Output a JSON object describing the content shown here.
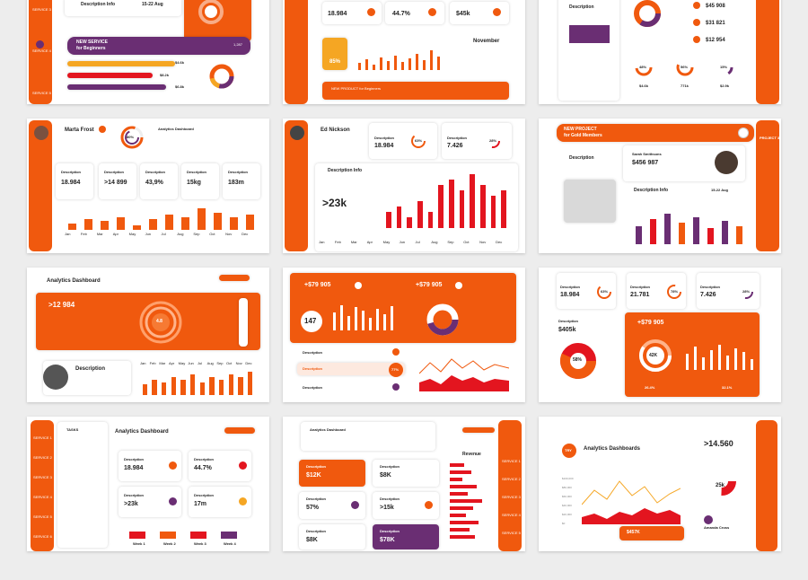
{
  "colors": {
    "orange": "#f0590e",
    "red": "#e3151f",
    "purple": "#6a2e73",
    "yellow": "#f5a623"
  },
  "s1": {
    "desc": "Description Info",
    "date": "15-22 Aug",
    "banner1": "NEW SERVICE",
    "banner2": "for Beginners",
    "v1": "$4.6k",
    "v2": "$6.8k",
    "v3": "$8.2k",
    "v4": "1,287",
    "rail": [
      "SERVICE 3",
      "SERVICE 4",
      "SERVICE 5"
    ]
  },
  "s2": {
    "v1": "18.984",
    "v2": "44.7%",
    "v3": "$45k",
    "pct": "85%",
    "month": "November",
    "banner": "NEW PRODUCT for Beginners"
  },
  "s3": {
    "desc": "Description",
    "v1": "$45 908",
    "v2": "$31 821",
    "v3": "$12 954",
    "p1": "48%",
    "p2": "56%",
    "p3": "15%",
    "m1": "$4.6k",
    "m2": "771k",
    "m3": "$2.9k"
  },
  "s4": {
    "name": "Marta Frost",
    "pct": "80%",
    "title": "Analytics Dashboard",
    "labels": [
      "Description",
      "Description",
      "Description",
      "Description",
      "Description"
    ],
    "values": [
      "18.984",
      ">14 899",
      "43,9%",
      "15kg",
      "183m"
    ],
    "months": [
      "Jan",
      "Feb",
      "Mar",
      "Apr",
      "May",
      "Jun",
      "Jul",
      "Aug",
      "Sep",
      "Oct",
      "Nov",
      "Dec"
    ],
    "bars": [
      3,
      5,
      4,
      6,
      2,
      5,
      7,
      6,
      10,
      8,
      6,
      7
    ]
  },
  "s5": {
    "name": "Ed Nickson",
    "d1": "Description",
    "v1": "18.984",
    "p1": "63%",
    "d2": "Description",
    "v2": "7.426",
    "p2": "28%",
    "info": "Description Info",
    "big": ">23k",
    "months": [
      "Jan",
      "Feb",
      "Mar",
      "Apr",
      "May",
      "Jun",
      "Jul",
      "Aug",
      "Sep",
      "Oct",
      "Nov",
      "Dec"
    ],
    "bars": [
      3,
      4,
      2,
      5,
      3,
      8,
      9,
      7,
      10,
      8,
      6,
      7
    ]
  },
  "s6": {
    "banner1": "NEW PROJECT",
    "banner2": "for Gold Members",
    "rail": "PROJECT 3",
    "desc": "Description",
    "person": "Sarah Smithsons",
    "value": "$456 987",
    "info": "Description Info",
    "date": "15-22 Aug"
  },
  "s7": {
    "title": "Analytics Dashboard",
    "big": ">12 984",
    "gauge": "4.8",
    "desc": "Description",
    "months": [
      "Jan",
      "Feb",
      "Mar",
      "Apr",
      "May",
      "Jun",
      "Jul",
      "Aug",
      "Sep",
      "Oct",
      "Nov",
      "Dec"
    ],
    "bars": [
      4,
      6,
      5,
      7,
      6,
      8,
      5,
      7,
      6,
      8,
      7,
      9
    ]
  },
  "s8": {
    "v1": "+$79 905",
    "v2": "+$79 905",
    "big": "147",
    "labels": [
      "Description",
      "Description",
      "Description"
    ],
    "pct": "77%"
  },
  "s9": {
    "d1": "Description",
    "v1": "18.984",
    "p1": "63%",
    "d2": "Description",
    "v2": "21.781",
    "p2": "78%",
    "d3": "Description",
    "v3": "7.426",
    "p3": "28%",
    "d4": "Description",
    "v4": "$405k",
    "p4": "58%",
    "v5": "+$79 905",
    "gauge": "42K",
    "m1": "26.4%",
    "m2": "32.1%"
  },
  "s10": {
    "tasks": "TASKS",
    "title": "Analytics Dashboard",
    "labels": [
      "Description",
      "Description",
      "Description",
      "Description"
    ],
    "values": [
      "18.984",
      "44.7%",
      ">23k",
      "17m"
    ],
    "weeks": [
      "Week 1",
      "Week 2",
      "Week 3",
      "Week 4"
    ],
    "rail": [
      "SERVICE 1",
      "SERVICE 2",
      "SERVICE 3",
      "SERVICE 4",
      "SERVICE 5",
      "SERVICE 6"
    ]
  },
  "s11": {
    "title": "Analytics Dashboard",
    "revenue": "Revenue",
    "labels": [
      "Description",
      "Description",
      "Description",
      "Description",
      "Description",
      "Description"
    ],
    "values": [
      "$12K",
      "$8K",
      "57%",
      ">15k",
      "$8K",
      "$78K"
    ],
    "rail": [
      "SERVICE 1",
      "SERVICE 2",
      "SERVICE 3",
      "SERVICE 4",
      "SERVICE 5"
    ]
  },
  "s12": {
    "tag": "TRY",
    "title": "Analytics Dashboards",
    "big": ">14.560",
    "pct": "25k",
    "name": "Amanda Cross",
    "bottom": "$457K",
    "yaxis": [
      "$100,000",
      "$80,000",
      "$60,000",
      "$40,000",
      "$20,000",
      "$0"
    ]
  }
}
